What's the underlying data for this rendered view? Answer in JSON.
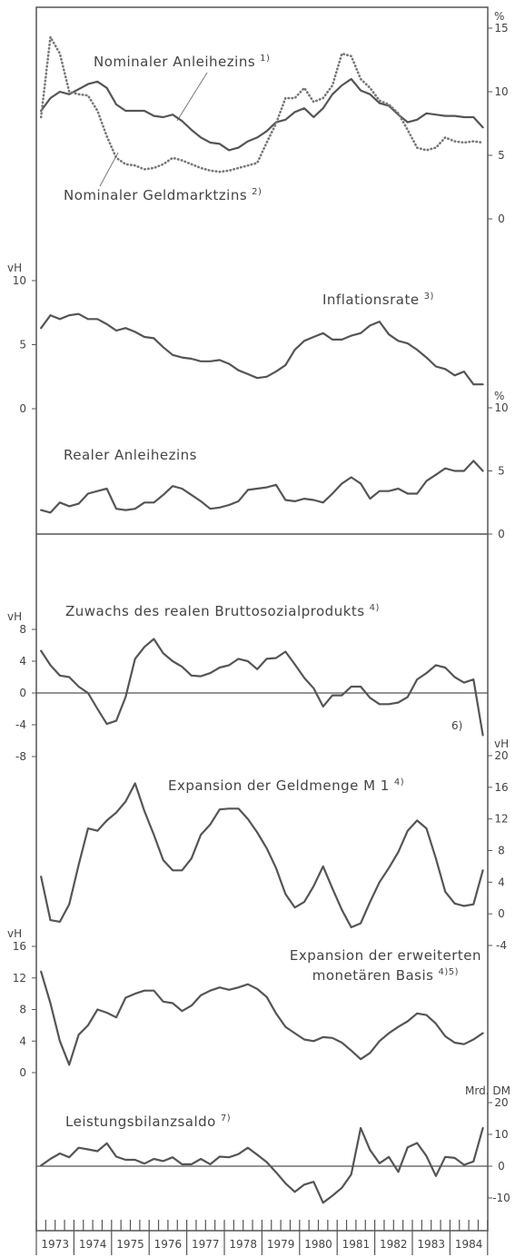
{
  "x_axis": {
    "categories": [
      "1973",
      "1974",
      "1975",
      "1976",
      "1977",
      "1978",
      "1979",
      "1980",
      "1981",
      "1982",
      "1983",
      "1984"
    ]
  },
  "chart_data": [
    {
      "type": "line",
      "y_unit": "%",
      "ylim": [
        0,
        15
      ],
      "yticks": [
        0,
        5,
        10,
        15
      ],
      "series": [
        {
          "name": "Nominaler Anleihezins",
          "note": "1)",
          "color": "#555",
          "style": "solid",
          "values": [
            8.5,
            9.5,
            10.0,
            9.8,
            10.2,
            10.6,
            10.8,
            10.3,
            9.0,
            8.5,
            8.5,
            8.5,
            8.1,
            8.0,
            8.2,
            7.7,
            7.0,
            6.4,
            6.0,
            5.9,
            5.4,
            5.6,
            6.1,
            6.4,
            6.9,
            7.6,
            7.8,
            8.4,
            8.7,
            8.0,
            8.7,
            9.8,
            10.5,
            11.0,
            10.1,
            9.8,
            9.1,
            8.9,
            8.2,
            7.6,
            7.8,
            8.3,
            8.2,
            8.1,
            8.1,
            8.0,
            8.0,
            7.2
          ]
        },
        {
          "name": "Nominaler Geldmarktzins",
          "note": "2)",
          "color": "#777",
          "style": "dotted",
          "values": [
            8.0,
            14.3,
            13.0,
            10.0,
            9.8,
            9.7,
            8.5,
            6.5,
            4.8,
            4.3,
            4.2,
            3.9,
            4.0,
            4.3,
            4.8,
            4.6,
            4.3,
            4.0,
            3.8,
            3.7,
            3.8,
            4.0,
            4.2,
            4.4,
            6.0,
            7.5,
            9.5,
            9.5,
            10.3,
            9.2,
            9.5,
            10.5,
            13.0,
            12.8,
            11.0,
            10.3,
            9.3,
            9.0,
            8.3,
            7.0,
            5.6,
            5.4,
            5.6,
            6.4,
            6.1,
            6.0,
            6.1,
            6.0
          ]
        }
      ]
    },
    {
      "type": "line",
      "title": "Inflationsrate",
      "note": "3)",
      "y_unit": "vH",
      "ylim": [
        0,
        10
      ],
      "yticks": [
        0,
        5,
        10
      ],
      "color": "#555",
      "values": [
        6.3,
        7.3,
        7.0,
        7.3,
        7.4,
        7.0,
        7.0,
        6.6,
        6.1,
        6.3,
        6.0,
        5.6,
        5.5,
        4.8,
        4.2,
        4.0,
        3.9,
        3.7,
        3.7,
        3.8,
        3.5,
        3.0,
        2.7,
        2.4,
        2.5,
        2.9,
        3.4,
        4.6,
        5.3,
        5.6,
        5.9,
        5.4,
        5.4,
        5.7,
        5.9,
        6.5,
        6.8,
        5.8,
        5.3,
        5.1,
        4.6,
        4.0,
        3.3,
        3.1,
        2.6,
        2.9,
        1.9,
        1.9
      ]
    },
    {
      "type": "line",
      "title": "Realer Anleihezins",
      "y_unit": "%",
      "ylim": [
        0,
        10
      ],
      "yticks": [
        0,
        5,
        10
      ],
      "color": "#555",
      "values": [
        1.9,
        1.7,
        2.5,
        2.2,
        2.4,
        3.2,
        3.4,
        3.6,
        2.0,
        1.9,
        2.0,
        2.5,
        2.5,
        3.1,
        3.8,
        3.6,
        3.1,
        2.6,
        2.0,
        2.1,
        2.3,
        2.6,
        3.5,
        3.6,
        3.7,
        3.9,
        2.7,
        2.6,
        2.8,
        2.7,
        2.5,
        3.2,
        4.0,
        4.5,
        4.0,
        2.8,
        3.4,
        3.4,
        3.6,
        3.2,
        3.2,
        4.2,
        4.7,
        5.2,
        5.0,
        5.0,
        5.8,
        5.0
      ]
    },
    {
      "type": "line",
      "title": "Zuwachs des realen Bruttosozialprodukts",
      "note": "4)",
      "annotation": "6)",
      "y_unit": "vH",
      "ylim": [
        -8,
        8
      ],
      "yticks": [
        -8,
        -4,
        0,
        4,
        8
      ],
      "zero_line": true,
      "color": "#555",
      "values": [
        5.3,
        3.5,
        2.2,
        2.0,
        0.8,
        0.0,
        -2.0,
        -3.9,
        -3.5,
        -0.5,
        4.3,
        5.8,
        6.8,
        5.0,
        4.0,
        3.3,
        2.2,
        2.1,
        2.5,
        3.2,
        3.5,
        4.3,
        4.0,
        3.0,
        4.3,
        4.4,
        5.2,
        3.6,
        1.9,
        0.6,
        -1.7,
        -0.3,
        -0.3,
        0.8,
        0.8,
        -0.6,
        -1.4,
        -1.4,
        -1.2,
        -0.5,
        1.7,
        2.5,
        3.5,
        3.2,
        2.0,
        1.3,
        1.7,
        -5.3
      ]
    },
    {
      "type": "line",
      "title": "Expansion der Geldmenge M 1",
      "note": "4)",
      "y_unit": "vH",
      "ylim": [
        -4,
        20
      ],
      "yticks": [
        -4,
        0,
        4,
        8,
        12,
        16,
        20
      ],
      "color": "#555",
      "values": [
        4.7,
        -0.8,
        -1.0,
        1.2,
        6.2,
        10.8,
        10.5,
        11.8,
        12.8,
        14.2,
        16.5,
        13.0,
        10.0,
        6.8,
        5.5,
        5.5,
        7.0,
        10.0,
        11.3,
        13.2,
        13.3,
        13.3,
        12.0,
        10.3,
        8.3,
        5.8,
        2.5,
        0.8,
        1.5,
        3.5,
        6.0,
        3.2,
        0.5,
        -1.7,
        -1.2,
        1.5,
        4.0,
        5.8,
        7.8,
        10.5,
        11.8,
        10.8,
        7.0,
        2.8,
        1.3,
        1.0,
        1.2,
        5.5
      ]
    },
    {
      "type": "line",
      "title": [
        "Expansion der erweiterten",
        "monetären Basis"
      ],
      "note": "4)5)",
      "y_unit": "vH",
      "ylim": [
        0,
        16
      ],
      "yticks": [
        0,
        4,
        8,
        12,
        16
      ],
      "color": "#555",
      "values": [
        12.8,
        8.8,
        4.0,
        1.0,
        4.8,
        6.0,
        8.0,
        7.6,
        7.0,
        9.5,
        10.0,
        10.4,
        10.4,
        9.0,
        8.8,
        7.8,
        8.5,
        9.8,
        10.4,
        10.8,
        10.5,
        10.8,
        11.2,
        10.6,
        9.6,
        7.5,
        5.8,
        5.0,
        4.2,
        4.0,
        4.5,
        4.4,
        3.8,
        2.8,
        1.7,
        2.5,
        4.0,
        5.0,
        5.8,
        6.5,
        7.5,
        7.3,
        6.2,
        4.6,
        3.8,
        3.6,
        4.2,
        5.0
      ]
    },
    {
      "type": "line",
      "title": "Leistungsbilanzsaldo",
      "note": "7)",
      "y_unit": "Mrd. DM",
      "ylim": [
        -10,
        20
      ],
      "yticks": [
        -10,
        0,
        10,
        20
      ],
      "zero_line": true,
      "color": "#555",
      "values": [
        0.2,
        2.3,
        4.0,
        2.8,
        5.8,
        5.3,
        4.7,
        7.2,
        3.0,
        2.0,
        2.0,
        0.8,
        2.3,
        1.6,
        2.8,
        0.6,
        0.6,
        2.3,
        0.6,
        3.0,
        2.8,
        3.8,
        5.8,
        3.6,
        1.3,
        -1.9,
        -5.4,
        -8.1,
        -5.8,
        -4.9,
        -11.5,
        -9.3,
        -6.8,
        -2.6,
        12.0,
        5.1,
        0.9,
        2.9,
        -1.8,
        5.9,
        7.3,
        3.2,
        -3.1,
        2.9,
        2.6,
        0.4,
        1.5,
        12.0
      ]
    }
  ]
}
